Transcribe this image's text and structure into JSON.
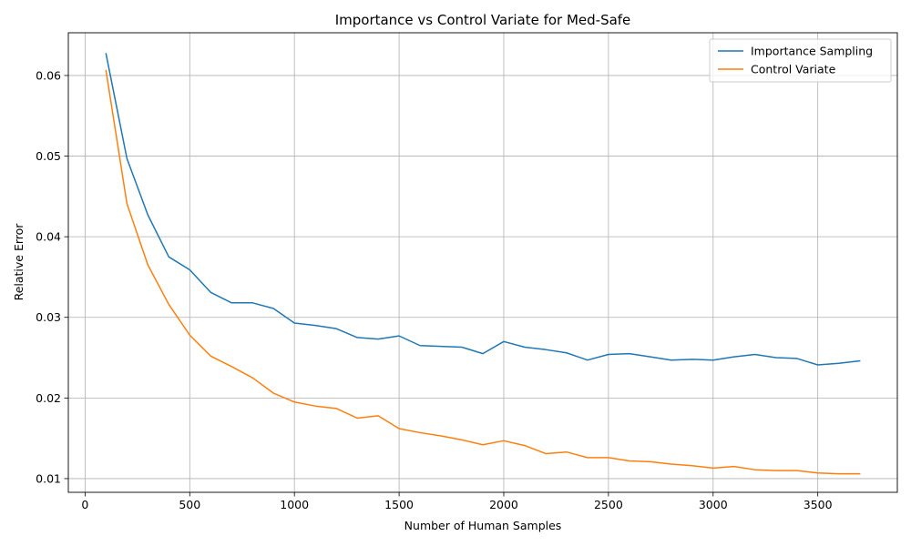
{
  "chart_data": {
    "type": "line",
    "title": "Importance vs Control Variate for Med-Safe",
    "xlabel": "Number of Human Samples",
    "ylabel": "Relative Error",
    "xlim": [
      -80,
      3880
    ],
    "ylim": [
      0.0083,
      0.0653
    ],
    "xticks": [
      0,
      500,
      1000,
      1500,
      2000,
      2500,
      3000,
      3500
    ],
    "xtick_labels": [
      "0",
      "500",
      "1000",
      "1500",
      "2000",
      "2500",
      "3000",
      "3500"
    ],
    "yticks": [
      0.01,
      0.02,
      0.03,
      0.04,
      0.05,
      0.06
    ],
    "ytick_labels": [
      "0.01",
      "0.02",
      "0.03",
      "0.04",
      "0.05",
      "0.06"
    ],
    "grid": true,
    "legend_position": "top-right",
    "x": [
      100,
      200,
      300,
      400,
      500,
      600,
      700,
      800,
      900,
      1000,
      1100,
      1200,
      1300,
      1400,
      1500,
      1600,
      1700,
      1800,
      1900,
      2000,
      2100,
      2200,
      2300,
      2400,
      2500,
      2600,
      2700,
      2800,
      2900,
      3000,
      3100,
      3200,
      3300,
      3400,
      3500,
      3600,
      3700
    ],
    "series": [
      {
        "name": "Importance Sampling",
        "color": "#1f77b4",
        "values": [
          0.0627,
          0.0497,
          0.0427,
          0.0375,
          0.0359,
          0.0331,
          0.0318,
          0.0318,
          0.0311,
          0.0293,
          0.029,
          0.0286,
          0.0275,
          0.0273,
          0.0277,
          0.0265,
          0.0264,
          0.0263,
          0.0255,
          0.027,
          0.0263,
          0.026,
          0.0256,
          0.0247,
          0.0254,
          0.0255,
          0.0251,
          0.0247,
          0.0248,
          0.0247,
          0.0251,
          0.0254,
          0.025,
          0.0249,
          0.0241,
          0.0243,
          0.0246
        ]
      },
      {
        "name": "Control Variate",
        "color": "#ff7f0e",
        "values": [
          0.0606,
          0.0441,
          0.0365,
          0.0316,
          0.0278,
          0.0252,
          0.0239,
          0.0225,
          0.0206,
          0.0195,
          0.019,
          0.0187,
          0.0175,
          0.0178,
          0.0162,
          0.0157,
          0.0153,
          0.0148,
          0.0142,
          0.0147,
          0.0141,
          0.0131,
          0.0133,
          0.0126,
          0.0126,
          0.0122,
          0.0121,
          0.0118,
          0.0116,
          0.0113,
          0.0115,
          0.0111,
          0.011,
          0.011,
          0.0107,
          0.0106,
          0.0106
        ]
      }
    ]
  }
}
